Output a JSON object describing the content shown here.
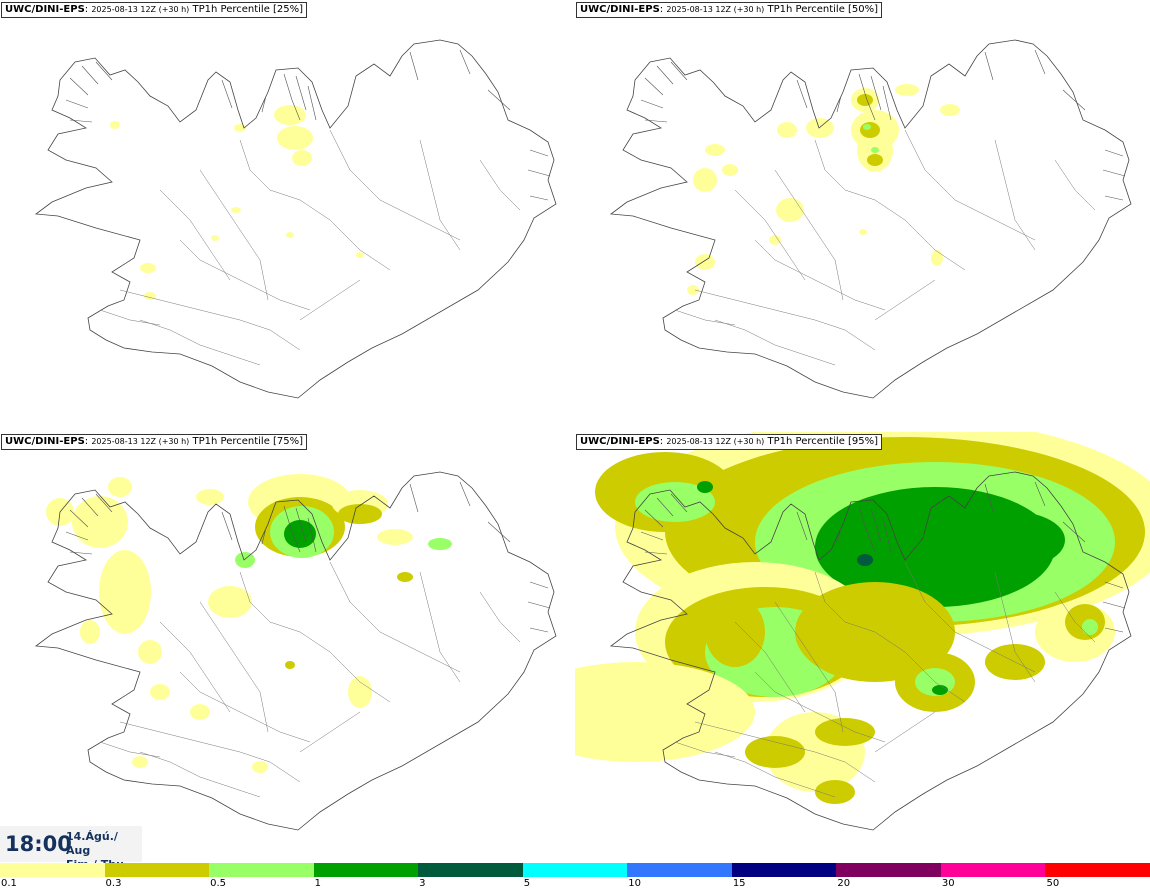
{
  "panels": [
    {
      "model": "UWC/DINI-EPS",
      "run": "2025-08-13 12Z (+30 h)",
      "param": "TP1h Percentile [25%]",
      "level": 0
    },
    {
      "model": "UWC/DINI-EPS",
      "run": "2025-08-13 12Z (+30 h)",
      "param": "TP1h Percentile [50%]",
      "level": 1
    },
    {
      "model": "UWC/DINI-EPS",
      "run": "2025-08-13 12Z (+30 h)",
      "param": "TP1h Percentile [75%]",
      "level": 2
    },
    {
      "model": "UWC/DINI-EPS",
      "run": "2025-08-13 12Z (+30 h)",
      "param": "TP1h Percentile [95%]",
      "level": 3
    }
  ],
  "time": {
    "hour": "18:00",
    "date_line1": "14.Ágú./ Aug",
    "date_line2": "Fim./ Thu"
  },
  "legend": {
    "colors": [
      "#ffff99",
      "#cccc00",
      "#99ff66",
      "#00a000",
      "#005a3c",
      "#00ffff",
      "#3377ff",
      "#000080",
      "#800060",
      "#ff0099",
      "#ff0000"
    ],
    "labels": [
      "0.1",
      "0.3",
      "0.5",
      "1",
      "3",
      "5",
      "10",
      "15",
      "20",
      "30",
      "50"
    ]
  }
}
